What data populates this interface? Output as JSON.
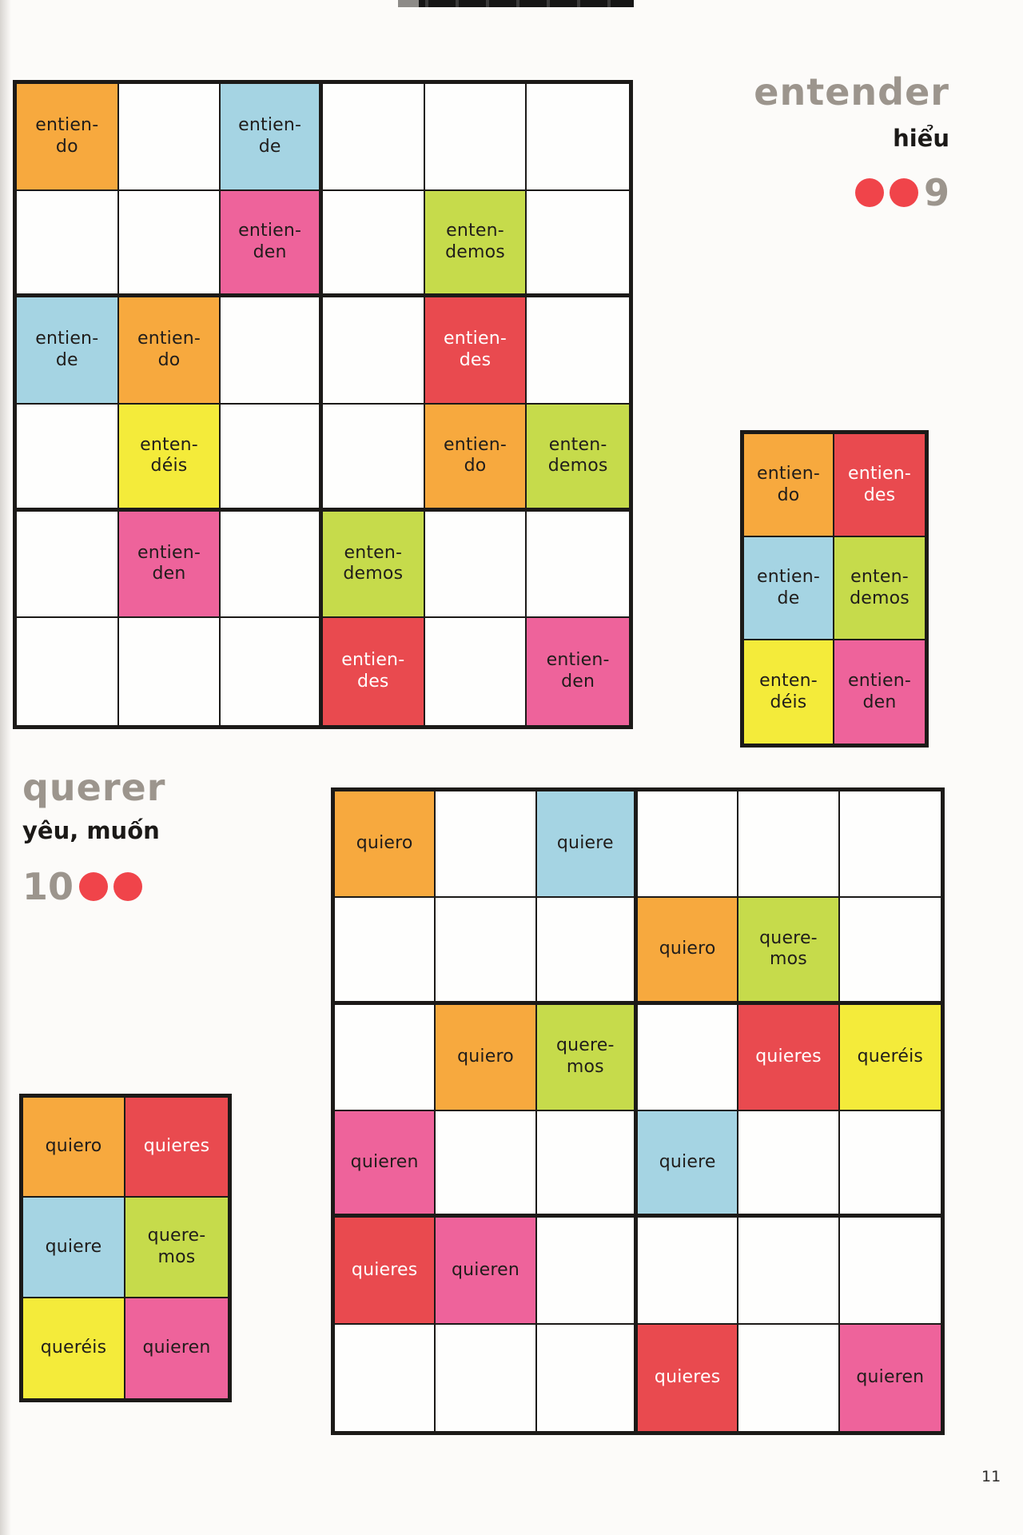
{
  "page": {
    "number": "11",
    "colors": {
      "orange": "#F7A93E",
      "red": "#E94A4F",
      "blue": "#A5D4E3",
      "green": "#C6DB4B",
      "yellow": "#F4EB3A",
      "pink": "#EE639B",
      "title_gray": "#9C958D",
      "dot_red": "#F0444A",
      "grid_line": "#1C1A18"
    }
  },
  "puzzles": [
    {
      "id": "entender",
      "title": "entender",
      "translation": "hiểu",
      "number": "9",
      "difficulty_dots": 2,
      "grid": [
        [
          {
            "text": "entien-\ndo",
            "color": "orange"
          },
          null,
          {
            "text": "entien-\nde",
            "color": "blue"
          },
          null,
          null,
          null
        ],
        [
          null,
          null,
          {
            "text": "entien-\nden",
            "color": "pink"
          },
          null,
          {
            "text": "enten-\ndemos",
            "color": "green"
          },
          null
        ],
        [
          {
            "text": "entien-\nde",
            "color": "blue"
          },
          {
            "text": "entien-\ndo",
            "color": "orange"
          },
          null,
          null,
          {
            "text": "entien-\ndes",
            "color": "red",
            "text_color": "#ffffff"
          },
          null
        ],
        [
          null,
          {
            "text": "enten-\ndéis",
            "color": "yellow"
          },
          null,
          null,
          {
            "text": "entien-\ndo",
            "color": "orange"
          },
          {
            "text": "enten-\ndemos",
            "color": "green"
          }
        ],
        [
          null,
          {
            "text": "entien-\nden",
            "color": "pink"
          },
          null,
          {
            "text": "enten-\ndemos",
            "color": "green"
          },
          null,
          null
        ],
        [
          null,
          null,
          null,
          {
            "text": "entien-\ndes",
            "color": "red",
            "text_color": "#ffffff"
          },
          null,
          {
            "text": "entien-\nden",
            "color": "pink"
          }
        ]
      ],
      "legend": [
        [
          {
            "text": "entien-\ndo",
            "color": "orange"
          },
          {
            "text": "entien-\ndes",
            "color": "red",
            "text_color": "#ffffff"
          }
        ],
        [
          {
            "text": "entien-\nde",
            "color": "blue"
          },
          {
            "text": "enten-\ndemos",
            "color": "green"
          }
        ],
        [
          {
            "text": "enten-\ndéis",
            "color": "yellow"
          },
          {
            "text": "entien-\nden",
            "color": "pink"
          }
        ]
      ]
    },
    {
      "id": "querer",
      "title": "querer",
      "translation": "yêu, muốn",
      "number": "10",
      "difficulty_dots": 2,
      "grid": [
        [
          {
            "text": "quiero",
            "color": "orange"
          },
          null,
          {
            "text": "quiere",
            "color": "blue"
          },
          null,
          null,
          null
        ],
        [
          null,
          null,
          null,
          {
            "text": "quiero",
            "color": "orange"
          },
          {
            "text": "quere-\nmos",
            "color": "green"
          },
          null
        ],
        [
          null,
          {
            "text": "quiero",
            "color": "orange"
          },
          {
            "text": "quere-\nmos",
            "color": "green"
          },
          null,
          {
            "text": "quieres",
            "color": "red",
            "text_color": "#ffffff"
          },
          {
            "text": "queréis",
            "color": "yellow"
          }
        ],
        [
          {
            "text": "quieren",
            "color": "pink"
          },
          null,
          null,
          {
            "text": "quiere",
            "color": "blue"
          },
          null,
          null
        ],
        [
          {
            "text": "quieres",
            "color": "red",
            "text_color": "#ffffff"
          },
          {
            "text": "quieren",
            "color": "pink"
          },
          null,
          null,
          null,
          null
        ],
        [
          null,
          null,
          null,
          {
            "text": "quieres",
            "color": "red",
            "text_color": "#ffffff"
          },
          null,
          {
            "text": "quieren",
            "color": "pink"
          }
        ]
      ],
      "legend": [
        [
          {
            "text": "quiero",
            "color": "orange"
          },
          {
            "text": "quieres",
            "color": "red",
            "text_color": "#ffffff"
          }
        ],
        [
          {
            "text": "quiere",
            "color": "blue"
          },
          {
            "text": "quere-\nmos",
            "color": "green"
          }
        ],
        [
          {
            "text": "queréis",
            "color": "yellow"
          },
          {
            "text": "quieren",
            "color": "pink"
          }
        ]
      ]
    }
  ]
}
